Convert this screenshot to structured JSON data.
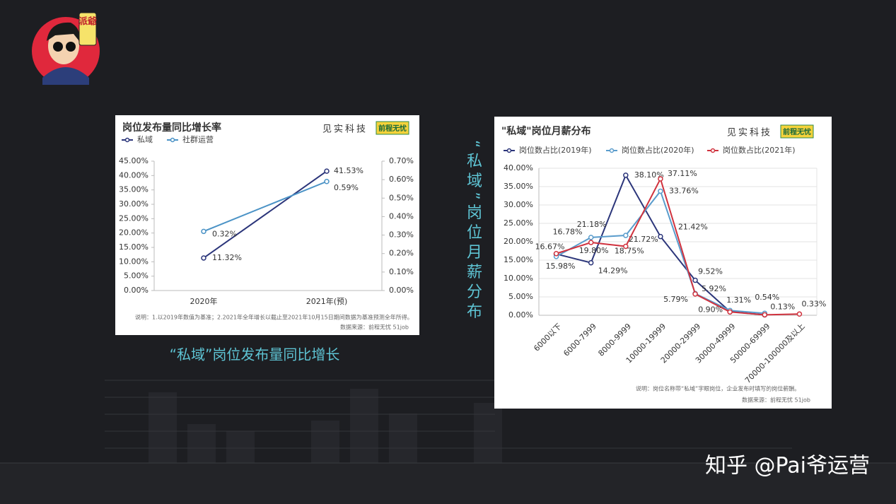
{
  "avatar_text": "派爺",
  "caption_left": "“私域”岗位发布量同比增长",
  "caption_vertical": "“私域”岗位月薪分布",
  "watermark": "知乎 @Pai爷运营",
  "chart_data": [
    {
      "type": "line",
      "title": "岗位发布量同比增长率",
      "brand": "见实科技",
      "logo": "前程无忧",
      "categories": [
        "2020年",
        "2021年(预)"
      ],
      "series": [
        {
          "name": "私域",
          "color": "#2b357a",
          "values": [
            11.32,
            41.53
          ],
          "value_labels": [
            "11.32%",
            "41.53%"
          ]
        },
        {
          "name": "社群运营",
          "color": "#4b93c6",
          "axis": "y2",
          "values": [
            0.32,
            0.59
          ],
          "value_labels": [
            "0.32%",
            "0.59%"
          ]
        }
      ],
      "ylim": [
        0,
        45
      ],
      "yticks": [
        {
          "value": 0,
          "label": "0.00%"
        },
        {
          "value": 5,
          "label": "5.00%"
        },
        {
          "value": 10,
          "label": "10.00%"
        },
        {
          "value": 15,
          "label": "15.00%"
        },
        {
          "value": 20,
          "label": "20.00%"
        },
        {
          "value": 25,
          "label": "25.00%"
        },
        {
          "value": 30,
          "label": "30.00%"
        },
        {
          "value": 35,
          "label": "35.00%"
        },
        {
          "value": 40,
          "label": "40.00%"
        },
        {
          "value": 45,
          "label": "45.00%"
        }
      ],
      "y2lim": [
        0,
        0.7
      ],
      "y2ticks": [
        {
          "value": 0,
          "label": "0.00%"
        },
        {
          "value": 0.1,
          "label": "0.10%"
        },
        {
          "value": 0.2,
          "label": "0.20%"
        },
        {
          "value": 0.3,
          "label": "0.30%"
        },
        {
          "value": 0.4,
          "label": "0.40%"
        },
        {
          "value": 0.5,
          "label": "0.50%"
        },
        {
          "value": 0.6,
          "label": "0.60%"
        },
        {
          "value": 0.7,
          "label": "0.70%"
        }
      ],
      "grid": false,
      "note": "说明：1.以2019年数值为基准；2.2021年全年增长以截止至2021年10月15日期间数据为基准预测全年所得。",
      "source": "数据来源：前程无忧 51job"
    },
    {
      "type": "line",
      "title": "\"私域\"岗位月薪分布",
      "brand": "见实科技",
      "logo": "前程无忧",
      "categories": [
        "6000以下",
        "6000-7999",
        "8000-9999",
        "10000-19999",
        "20000-29999",
        "30000-49999",
        "50000-69999",
        "70000-100000及以上"
      ],
      "series": [
        {
          "name": "岗位数占比(2019年)",
          "color": "#2b357a",
          "values": [
            16.67,
            14.29,
            38.1,
            21.42,
            9.52,
            1.0,
            0.1,
            null
          ],
          "value_labels": [
            "16.67%",
            "14.29%",
            "38.10%",
            "21.42%",
            "9.52%",
            null,
            null,
            null
          ]
        },
        {
          "name": "岗位数占比(2020年)",
          "color": "#5a9ccc",
          "values": [
            15.98,
            21.18,
            21.72,
            33.76,
            5.92,
            1.31,
            0.54,
            null
          ],
          "value_labels": [
            "15.98%",
            "21.18%",
            "21.72%",
            "33.76%",
            "5.92%",
            "1.31%",
            "0.54%",
            null
          ]
        },
        {
          "name": "岗位数占比(2021年)",
          "color": "#d0323e",
          "values": [
            16.78,
            19.8,
            18.75,
            37.11,
            5.79,
            0.9,
            0.13,
            0.33
          ],
          "value_labels": [
            "16.78%",
            "19.80%",
            "18.75%",
            "37.11%",
            "5.79%",
            "0.90%",
            "0.13%",
            "0.33%"
          ]
        }
      ],
      "ylim": [
        0,
        40
      ],
      "yticks": [
        {
          "value": 0,
          "label": "0.00%"
        },
        {
          "value": 5,
          "label": "5.00%"
        },
        {
          "value": 10,
          "label": "10.00%"
        },
        {
          "value": 15,
          "label": "15.00%"
        },
        {
          "value": 20,
          "label": "20.00%"
        },
        {
          "value": 25,
          "label": "25.00%"
        },
        {
          "value": 30,
          "label": "30.00%"
        },
        {
          "value": 35,
          "label": "35.00%"
        },
        {
          "value": 40,
          "label": "40.00%"
        }
      ],
      "grid": true,
      "note": "说明：岗位名称带“私域”字眼岗位，企业发布时填写的岗位薪酬。",
      "source": "数据来源：前程无忧 51job"
    }
  ]
}
